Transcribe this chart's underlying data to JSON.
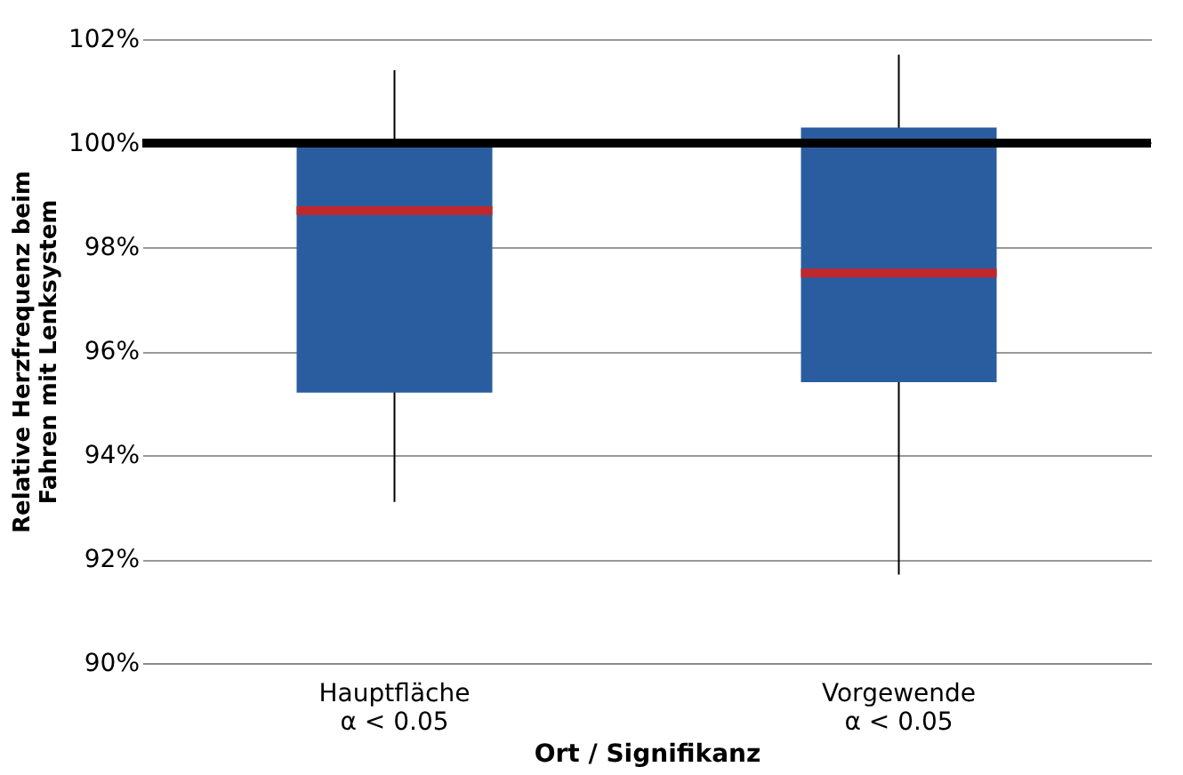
{
  "chart_data": {
    "type": "box",
    "xlabel": "Ort / Signifikanz",
    "ylabel": "Relative Herzfrequenz beim\nFahren mit Lenksystem",
    "categories": [
      "Hauptfläche\nα < 0.05",
      "Vorgewende\nα < 0.05"
    ],
    "boxes": [
      {
        "low": 93.1,
        "q1": 95.2,
        "median": 98.7,
        "q3": 100.0,
        "high": 101.4
      },
      {
        "low": 91.7,
        "q1": 95.4,
        "median": 97.5,
        "q3": 100.3,
        "high": 101.7
      }
    ],
    "color": "#2a5d9f",
    "ylim": [
      90,
      102
    ],
    "yticks": [
      {
        "value": 90,
        "label": "90%"
      },
      {
        "value": 92,
        "label": "92%"
      },
      {
        "value": 94,
        "label": "94%"
      },
      {
        "value": 96,
        "label": "96%"
      },
      {
        "value": 98,
        "label": "98%"
      },
      {
        "value": 100,
        "label": "100%"
      },
      {
        "value": 102,
        "label": "102%"
      }
    ],
    "grid": "y",
    "ref_lines": [
      {
        "axis": "y",
        "value": 100,
        "color": "#000000"
      }
    ]
  }
}
